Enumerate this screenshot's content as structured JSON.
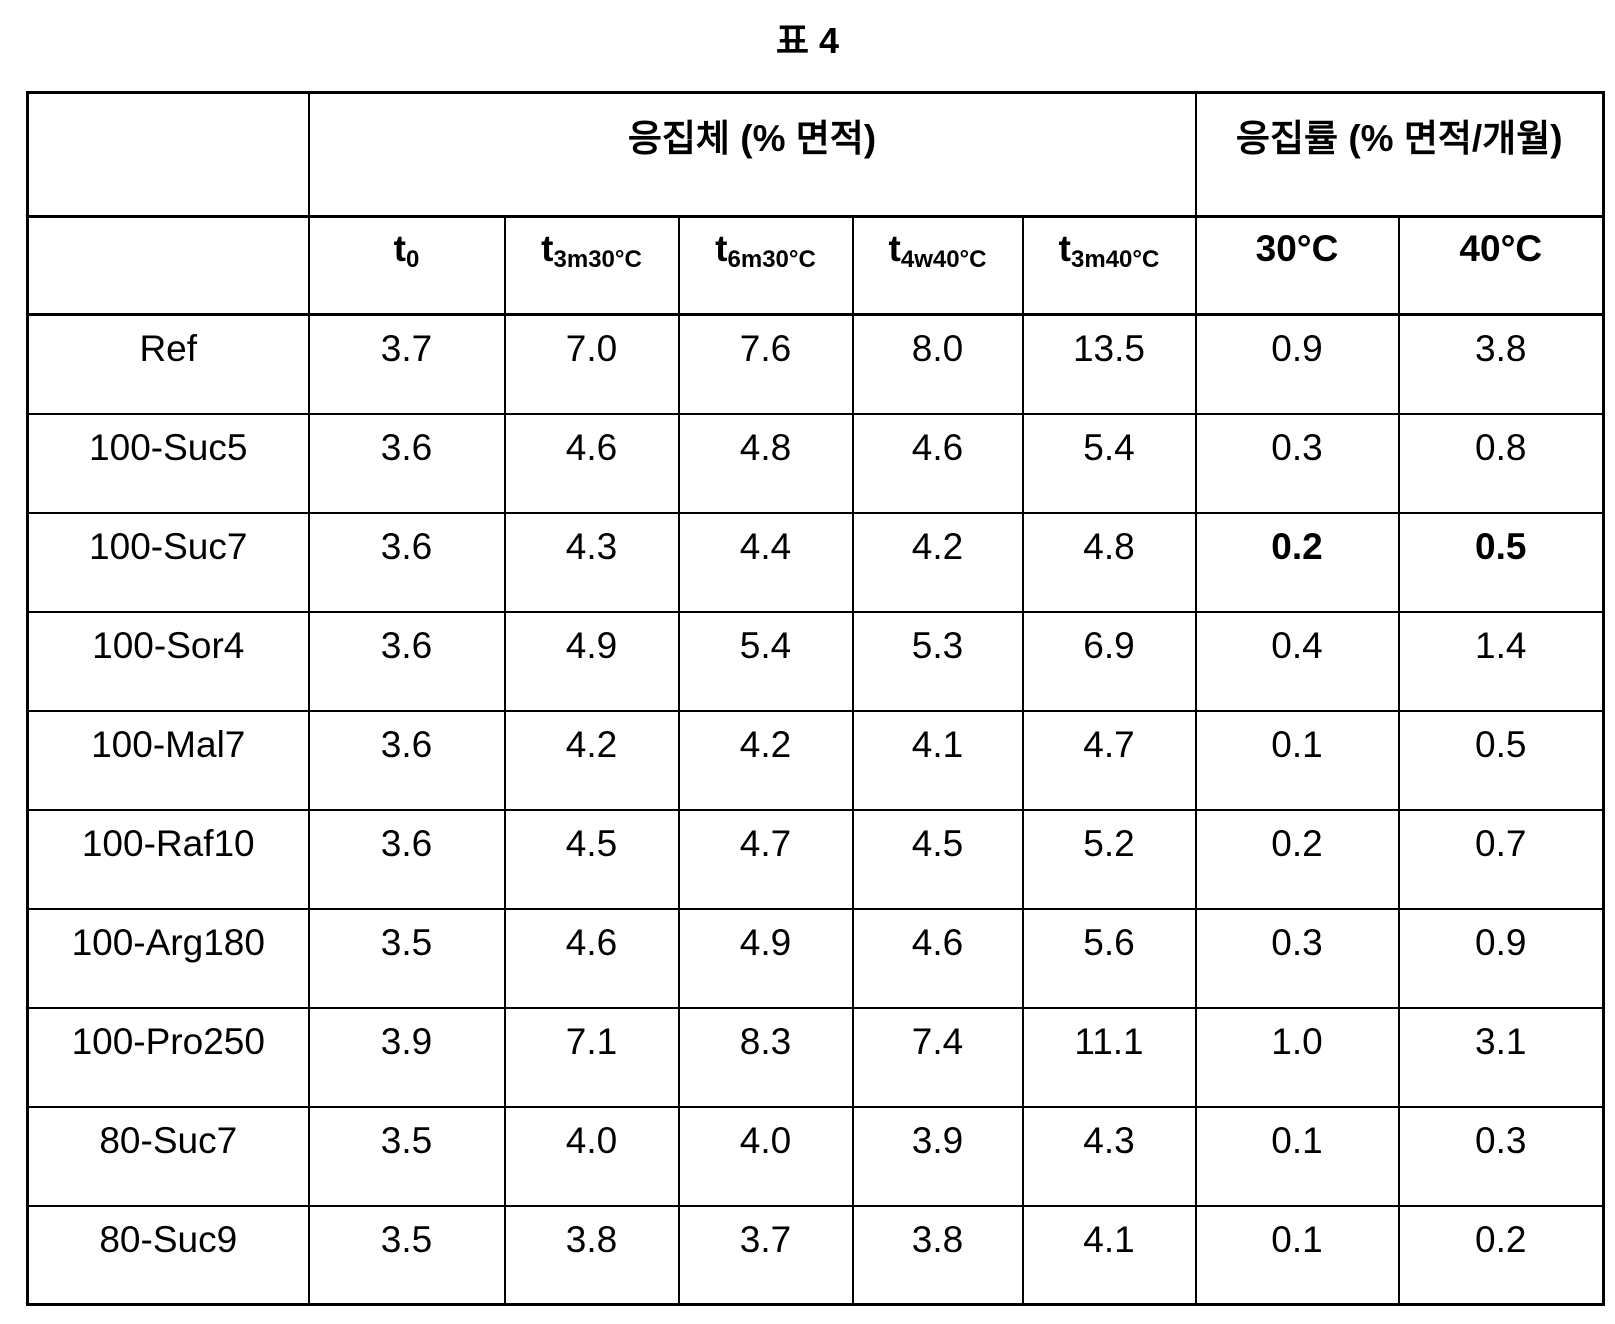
{
  "title": "표 4",
  "header": {
    "group1": "응집체 (% 면적)",
    "group2": "응집률 (% 면적/개월)",
    "columns": [
      {
        "base": "t",
        "sub": "0"
      },
      {
        "base": "t",
        "sub": "3m30°C"
      },
      {
        "base": "t",
        "sub": "6m30°C"
      },
      {
        "base": "t",
        "sub": "4w40°C"
      },
      {
        "base": "t",
        "sub": "3m40°C"
      },
      {
        "base": "30°C",
        "sub": ""
      },
      {
        "base": "40°C",
        "sub": ""
      }
    ]
  },
  "rows": [
    {
      "name": "Ref",
      "values": [
        "3.7",
        "7.0",
        "7.6",
        "8.0",
        "13.5",
        "0.9",
        "3.8"
      ]
    },
    {
      "name": "100-Suc5",
      "values": [
        "3.6",
        "4.6",
        "4.8",
        "4.6",
        "5.4",
        "0.3",
        "0.8"
      ]
    },
    {
      "name": "100-Suc7",
      "values": [
        "3.6",
        "4.3",
        "4.4",
        "4.2",
        "4.8",
        "0.2",
        "0.5"
      ],
      "bold": [
        5,
        6
      ]
    },
    {
      "name": "100-Sor4",
      "values": [
        "3.6",
        "4.9",
        "5.4",
        "5.3",
        "6.9",
        "0.4",
        "1.4"
      ]
    },
    {
      "name": "100-Mal7",
      "values": [
        "3.6",
        "4.2",
        "4.2",
        "4.1",
        "4.7",
        "0.1",
        "0.5"
      ]
    },
    {
      "name": "100-Raf10",
      "values": [
        "3.6",
        "4.5",
        "4.7",
        "4.5",
        "5.2",
        "0.2",
        "0.7"
      ]
    },
    {
      "name": "100-Arg180",
      "values": [
        "3.5",
        "4.6",
        "4.9",
        "4.6",
        "5.6",
        "0.3",
        "0.9"
      ]
    },
    {
      "name": "100-Pro250",
      "values": [
        "3.9",
        "7.1",
        "8.3",
        "7.4",
        "11.1",
        "1.0",
        "3.1"
      ]
    },
    {
      "name": "80-Suc7",
      "values": [
        "3.5",
        "4.0",
        "4.0",
        "3.9",
        "4.3",
        "0.1",
        "0.3"
      ]
    },
    {
      "name": "80-Suc9",
      "values": [
        "3.5",
        "3.8",
        "3.7",
        "3.8",
        "4.1",
        "0.1",
        "0.2"
      ]
    }
  ]
}
